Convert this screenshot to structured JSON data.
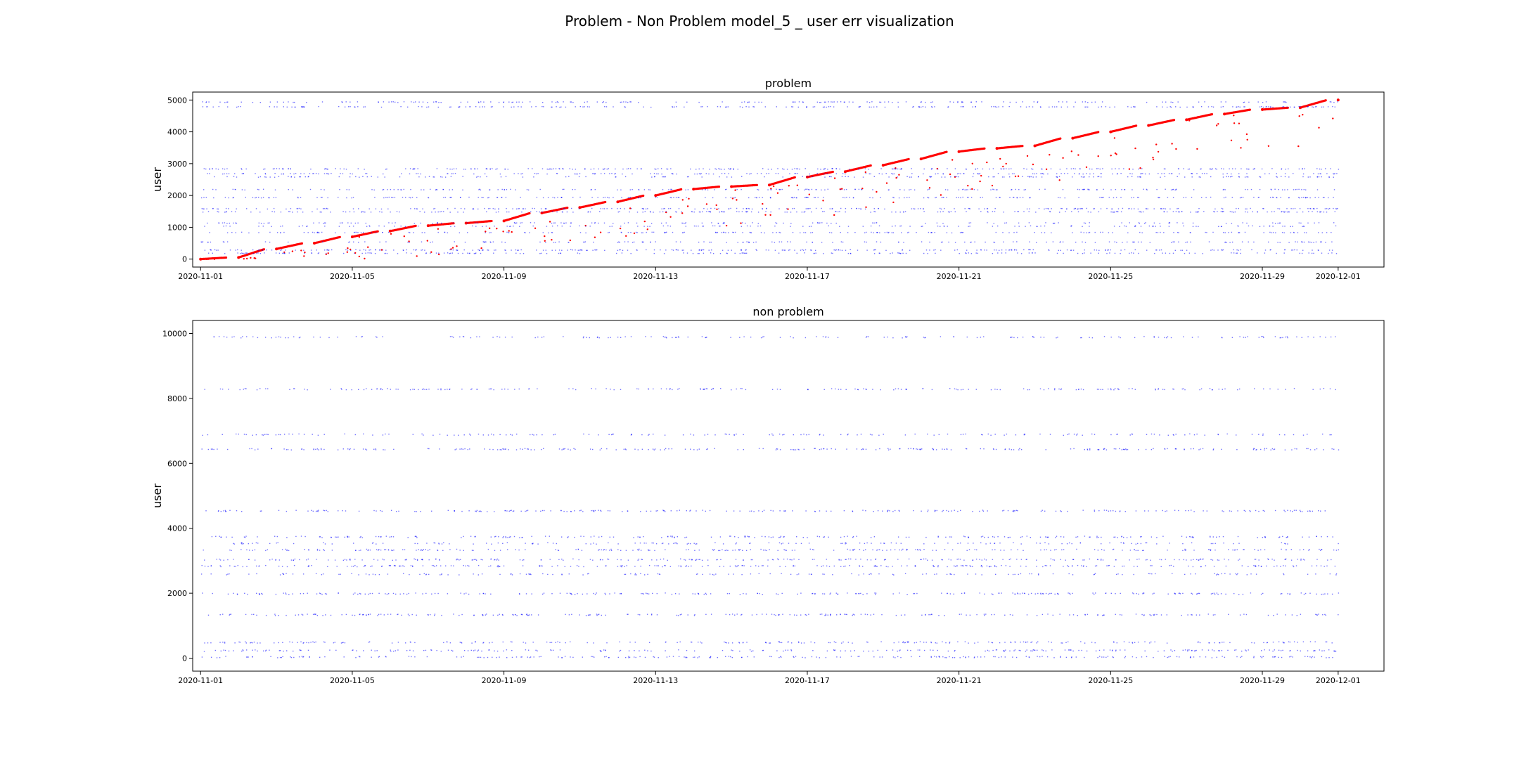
{
  "figure": {
    "title": "Problem - Non Problem model_5 _ user err visualization"
  },
  "colors": {
    "background": "#ffffff",
    "problem_trend": "#ff0000",
    "scatter_points": "#0000ff",
    "axes": "#000000"
  },
  "chart_data": [
    {
      "type": "scatter",
      "title": "problem",
      "xlabel": "",
      "ylabel": "user",
      "x_type": "date",
      "xlim": [
        "2020-10-31T19:00",
        "2020-12-02T05:00"
      ],
      "ylim": [
        -250,
        5250
      ],
      "xticks": [
        "2020-11-01",
        "2020-11-05",
        "2020-11-09",
        "2020-11-13",
        "2020-11-17",
        "2020-11-21",
        "2020-11-25",
        "2020-11-29",
        "2020-12-01"
      ],
      "yticks": [
        0,
        1000,
        2000,
        3000,
        4000,
        5000
      ],
      "grid": false,
      "legend": "none",
      "series": [
        {
          "color": "#ff0000",
          "marker_size": 2,
          "x": [
            "2020-11-01",
            "2020-11-02",
            "2020-11-03",
            "2020-11-04",
            "2020-11-05",
            "2020-11-06",
            "2020-11-07",
            "2020-11-08",
            "2020-11-09",
            "2020-11-10",
            "2020-11-11",
            "2020-11-12",
            "2020-11-13",
            "2020-11-14",
            "2020-11-15",
            "2020-11-16",
            "2020-11-17",
            "2020-11-18",
            "2020-11-19",
            "2020-11-20",
            "2020-11-21",
            "2020-11-22",
            "2020-11-23",
            "2020-11-24",
            "2020-11-25",
            "2020-11-26",
            "2020-11-27",
            "2020-11-28",
            "2020-11-29",
            "2020-11-30",
            "2020-12-01"
          ],
          "y": [
            0,
            50,
            320,
            500,
            700,
            880,
            1050,
            1130,
            1200,
            1450,
            1620,
            1800,
            2000,
            2200,
            2280,
            2330,
            2580,
            2750,
            2950,
            3150,
            3380,
            3480,
            3560,
            3800,
            4000,
            4200,
            4380,
            4560,
            4700,
            4760,
            5000
          ]
        },
        {
          "color": "#0000ff",
          "marker_size": 1,
          "x_range": [
            "2020-11-01",
            "2020-12-01"
          ],
          "y_bands": [
            200,
            300,
            550,
            850,
            1050,
            1150,
            1500,
            1600,
            1950,
            2200,
            2600,
            2700,
            2850,
            4800,
            4950
          ]
        }
      ]
    },
    {
      "type": "scatter",
      "title": "non problem",
      "xlabel": "",
      "ylabel": "user",
      "x_type": "date",
      "xlim": [
        "2020-10-31T19:00",
        "2020-12-02T05:00"
      ],
      "ylim": [
        -400,
        10400
      ],
      "xticks": [
        "2020-11-01",
        "2020-11-05",
        "2020-11-09",
        "2020-11-13",
        "2020-11-17",
        "2020-11-21",
        "2020-11-25",
        "2020-11-29",
        "2020-12-01"
      ],
      "yticks": [
        0,
        2000,
        4000,
        6000,
        8000,
        10000
      ],
      "grid": false,
      "legend": "none",
      "series": [
        {
          "color": "#0000ff",
          "marker_size": 1,
          "x_range": [
            "2020-11-01",
            "2020-12-01"
          ],
          "y_bands": [
            50,
            250,
            500,
            1350,
            2000,
            2600,
            2850,
            3050,
            3350,
            3550,
            3750,
            4550,
            6450,
            6900,
            8300,
            9900
          ]
        }
      ]
    }
  ]
}
